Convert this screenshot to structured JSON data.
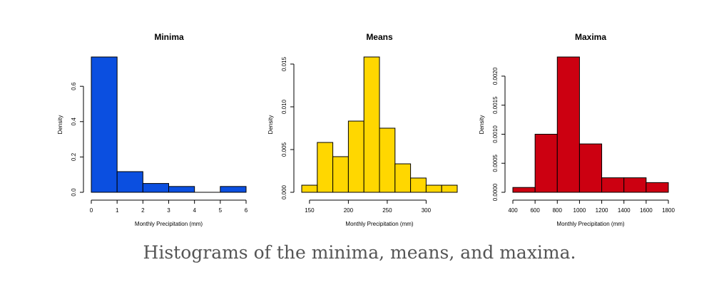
{
  "caption": "Histograms of the minima, means, and maxima.",
  "chart_data": [
    {
      "type": "bar",
      "title": "Minima",
      "xlabel": "Monthly Precipitation (mm)",
      "ylabel": "Density",
      "color": "#0b4fe0",
      "bins": [
        [
          0,
          1
        ],
        [
          1,
          2
        ],
        [
          2,
          3
        ],
        [
          3,
          4
        ],
        [
          4,
          5
        ],
        [
          5,
          6
        ]
      ],
      "values": [
        0.766,
        0.117,
        0.05,
        0.033,
        0.0,
        0.033
      ],
      "xlim": [
        0,
        6
      ],
      "ylim": [
        0,
        0.766
      ],
      "xticks": [
        0,
        1,
        2,
        3,
        4,
        5,
        6
      ],
      "xtick_labels": [
        "0",
        "1",
        "2",
        "3",
        "4",
        "5",
        "6"
      ],
      "yticks": [
        0.0,
        0.2,
        0.4,
        0.6
      ],
      "ytick_labels": [
        "0.0",
        "0.2",
        "0.4",
        "0.6"
      ]
    },
    {
      "type": "bar",
      "title": "Means",
      "xlabel": "Monthly Precipitation (mm)",
      "ylabel": "Density",
      "color": "#ffd700",
      "bins": [
        [
          140,
          160
        ],
        [
          160,
          180
        ],
        [
          180,
          200
        ],
        [
          200,
          220
        ],
        [
          220,
          240
        ],
        [
          240,
          260
        ],
        [
          260,
          280
        ],
        [
          280,
          300
        ],
        [
          300,
          320
        ],
        [
          320,
          340
        ]
      ],
      "values": [
        0.00083,
        0.00583,
        0.00417,
        0.00833,
        0.01583,
        0.0075,
        0.00333,
        0.00167,
        0.00083,
        0.00083
      ],
      "xlim": [
        140,
        340
      ],
      "ylim": [
        0,
        0.01583
      ],
      "xticks": [
        150,
        200,
        250,
        300
      ],
      "xtick_labels": [
        "150",
        "200",
        "250",
        "300"
      ],
      "yticks": [
        0.0,
        0.005,
        0.01,
        0.015
      ],
      "ytick_labels": [
        "0.000",
        "0.005",
        "0.010",
        "0.015"
      ]
    },
    {
      "type": "bar",
      "title": "Maxima",
      "xlabel": "Monthly Precipitation (mm)",
      "ylabel": "Density",
      "color": "#cc0011",
      "bins": [
        [
          400,
          600
        ],
        [
          600,
          800
        ],
        [
          800,
          1000
        ],
        [
          1000,
          1200
        ],
        [
          1200,
          1400
        ],
        [
          1400,
          1600
        ],
        [
          1600,
          1800
        ]
      ],
      "values": [
        8.33e-05,
        0.001,
        0.00233,
        0.000833,
        0.00025,
        0.00025,
        0.000167
      ],
      "xlim": [
        400,
        1800
      ],
      "ylim": [
        0,
        0.00233
      ],
      "xticks": [
        400,
        600,
        800,
        1000,
        1200,
        1400,
        1600,
        1800
      ],
      "xtick_labels": [
        "400",
        "600",
        "800",
        "1000",
        "1200",
        "1400",
        "1600",
        "1800"
      ],
      "yticks": [
        0.0,
        0.0005,
        0.001,
        0.0015,
        0.002
      ],
      "ytick_labels": [
        "0.0000",
        "0.0005",
        "0.0010",
        "0.0015",
        "0.0020"
      ]
    }
  ]
}
